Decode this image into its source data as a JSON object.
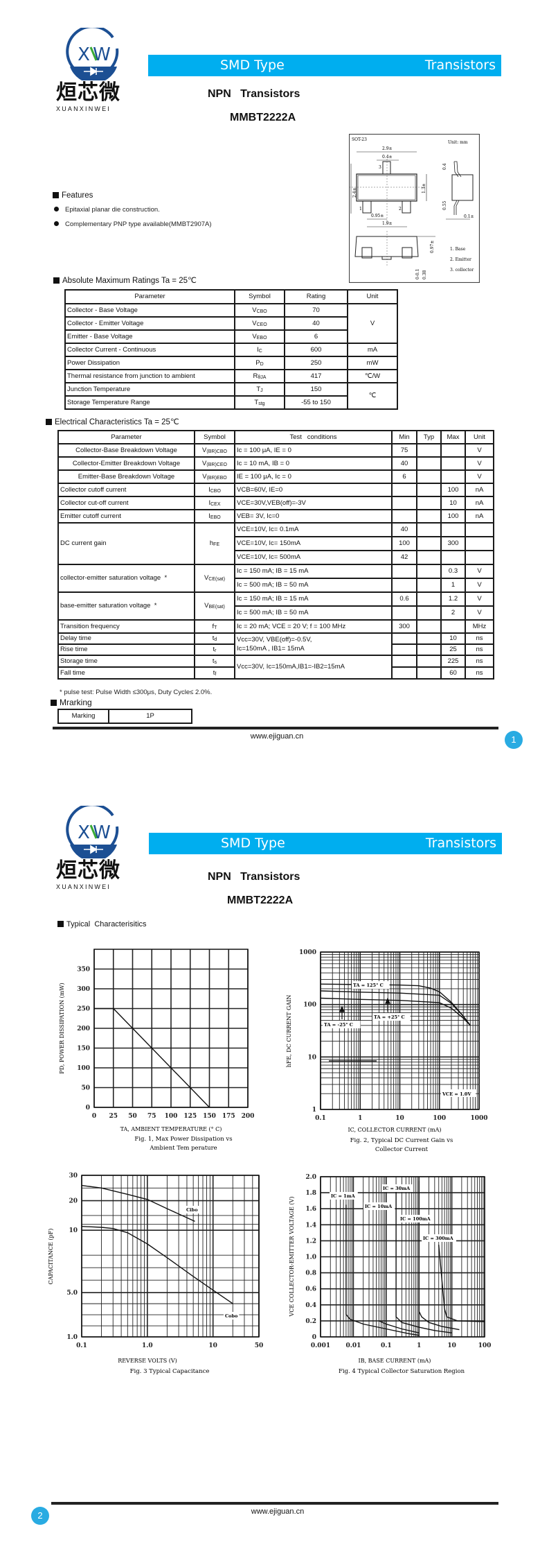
{
  "header": {
    "brand_cn": "烜芯微",
    "brand_en": "XUANXINWEI",
    "brand_mark": "XW",
    "bar_left": "SMD Type",
    "bar_right": "Transistors",
    "title_line1": "NPN   Transistors",
    "title_line2": "MMBT2222A",
    "brand_color": "#00aeef",
    "logo_color": "#1c4f93"
  },
  "package": {
    "name": "SOT-23",
    "unit": "Unit: mm",
    "dims": [
      "2.9±",
      "0.4±",
      "2.4±",
      "1.3±",
      "0.95±",
      "1.9±",
      "0.4",
      "0.55",
      "0.1±",
      "0.97±",
      "0-0.1",
      "0.38"
    ],
    "pin_numbers": [
      "1",
      "2",
      "3"
    ],
    "pins": [
      "1. Base",
      "2. Emitter",
      "3. collector"
    ]
  },
  "features": {
    "heading": "Features",
    "items": [
      "Epitaxial planar die construction.",
      "Complementary PNP type available(MMBT2907A)"
    ]
  },
  "abs_max": {
    "heading": "Absolute Maximum Ratings Ta = 25℃",
    "columns": [
      "Parameter",
      "Symbol",
      "Rating",
      "Unit"
    ],
    "rows": [
      {
        "param": "Collector - Base Voltage",
        "sym": "V",
        "sub": "CBO",
        "rating": "70",
        "unit": "V"
      },
      {
        "param": "Collector - Emitter Voltage",
        "sym": "V",
        "sub": "CEO",
        "rating": "40"
      },
      {
        "param": "Emitter - Base Voltage",
        "sym": "V",
        "sub": "EBO",
        "rating": "6"
      },
      {
        "param": "Collector Current  - Continuous",
        "sym": "I",
        "sub": "C",
        "rating": "600",
        "unit": "mA"
      },
      {
        "param": "Power Dissipation",
        "sym": "P",
        "sub": "D",
        "rating": "250",
        "unit": "mW"
      },
      {
        "param": "Thermal resistance from junction to ambient",
        "sym": "R",
        "sub": "θJA",
        "rating": "417",
        "unit": "℃/W"
      },
      {
        "param": "Junction Temperature",
        "sym": "T",
        "sub": "J",
        "rating": "150",
        "unit": "℃"
      },
      {
        "param": "Storage Temperature Range",
        "sym": "T",
        "sub": "stg",
        "rating": "-55 to 150"
      }
    ]
  },
  "elec": {
    "heading": "Electrical Characteristics Ta = 25℃",
    "columns": [
      "Parameter",
      "Symbol",
      "Test   conditions",
      "Min",
      "Typ",
      "Max",
      "Unit"
    ],
    "rows": [
      {
        "param": "Collector-Base Breakdown Voltage",
        "sym": "V",
        "sub": "(BR)CBO",
        "cond": "Ic = 100 μA, IE = 0",
        "min": "75",
        "unit": "V"
      },
      {
        "param": "Collector-Emitter Breakdown Voltage",
        "sym": "V",
        "sub": "(BR)CEO",
        "cond": "Ic = 10 mA, IB = 0",
        "min": "40",
        "unit": "V"
      },
      {
        "param": "Emitter-Base Breakdown Voltage",
        "sym": "V",
        "sub": "(BR)EBO",
        "cond": "IE = 100 μA, Ic = 0",
        "min": "6",
        "unit": "V"
      },
      {
        "param": "Collector cutoff current",
        "sym": "I",
        "sub": "CBO",
        "cond": "VCB=60V, IE=0",
        "max": "100",
        "unit": "nA"
      },
      {
        "param": "Collector cut-off current",
        "sym": "I",
        "sub": "CEX",
        "cond": "VCE=30V,VEB(off)=-3V",
        "max": "10",
        "unit": "nA"
      },
      {
        "param": "Emitter cutoff current",
        "sym": "I",
        "sub": "EBO",
        "cond": "VEB= 3V, Ic=0",
        "max": "100",
        "unit": "nA"
      },
      {
        "param": "DC current gain",
        "sym": "h",
        "sub": "FE",
        "sub_rows": [
          {
            "cond": "VCE=10V, Ic= 0.1mA",
            "min": "40"
          },
          {
            "cond": "VCE=10V, Ic= 150mA",
            "min": "100",
            "max": "300"
          },
          {
            "cond": "VCE=10V, Ic= 500mA",
            "min": "42"
          }
        ]
      },
      {
        "param": "collector-emitter saturation voltage  *",
        "sym": "V",
        "sub": "CE(sat)",
        "sub_rows": [
          {
            "cond": "Ic = 150 mA; IB = 15 mA",
            "max": "0.3",
            "unit": "V"
          },
          {
            "cond": "Ic = 500 mA; IB = 50 mA",
            "max": "1",
            "unit": "V"
          }
        ]
      },
      {
        "param": "base-emitter saturation voltage  *",
        "sym": "V",
        "sub": "BE(sat)",
        "sub_rows": [
          {
            "cond": "Ic = 150 mA; IB = 15 mA",
            "min": "0.6",
            "max": "1.2",
            "unit": "V"
          },
          {
            "cond": "Ic = 500 mA; IB = 50 mA",
            "max": "2",
            "unit": "V"
          }
        ]
      },
      {
        "param": "Transition frequency",
        "sym": "f",
        "sub": "T",
        "cond": "Ic = 20 mA; VCE = 20 V; f = 100 MHz",
        "min": "300",
        "unit": "MHz"
      },
      {
        "param": "Delay time",
        "sym": "t",
        "sub": "d",
        "cond_line1": "Vcc=30V, VBE(off)=-0.5V,",
        "cond_line2": "Ic=150mA , IB1= 15mA",
        "max": "10",
        "unit": "ns"
      },
      {
        "param": "Rise time",
        "sym": "t",
        "sub": "r",
        "max": "25",
        "unit": "ns"
      },
      {
        "param": "Storage time",
        "sym": "t",
        "sub": "s",
        "cond": "Vcc=30V, Ic=150mA,IB1=-IB2=15mA",
        "max": "225",
        "unit": "ns"
      },
      {
        "param": "Fall time",
        "sym": "t",
        "sub": "f",
        "max": "60",
        "unit": "ns"
      }
    ],
    "note": "* pulse test: Pulse Width ≤300μs, Duty Cycle≤ 2.0%."
  },
  "marking": {
    "heading": "Mrarking",
    "label": "Marking",
    "value": "1P"
  },
  "footer": {
    "url": "www.ejiguan.cn",
    "page1": "1",
    "page2": "2"
  },
  "typical": {
    "heading": "Typical  Characterisitics"
  },
  "chart_data": [
    {
      "type": "line",
      "xlabel": "TA, AMBIENT TEMPERATURE (° C)",
      "ylabel": "PD, POWER DISSIPATION (mW)",
      "caption": [
        "Fig. 1, Max Power Dissipation vs",
        "Ambient Tem perature"
      ],
      "x_scale": "linear",
      "y_scale": "linear",
      "xlim": [
        0,
        200
      ],
      "ylim": [
        0,
        400
      ],
      "xticks": [
        0,
        25,
        50,
        75,
        100,
        125,
        150,
        175,
        200
      ],
      "xtick_labels": [
        "0",
        "25",
        "50",
        "75",
        "100",
        "125",
        "150",
        "175",
        "200"
      ],
      "yticks": [
        0,
        50,
        100,
        150,
        200,
        250,
        300,
        350
      ],
      "ytick_labels": [
        "0",
        "50",
        "100",
        "150",
        "200",
        "250",
        "300",
        "350"
      ],
      "grid": true,
      "series": [
        {
          "points": [
            [
              0,
              250
            ],
            [
              25,
              250
            ],
            [
              150,
              0
            ]
          ]
        }
      ]
    },
    {
      "type": "line",
      "xlabel": "IC, COLLECTOR CURRENT (mA)",
      "ylabel": "hFE, DC CURRENT GAIN",
      "caption": [
        "Fig. 2, Typical DC Current Gain vs",
        "Collector Current"
      ],
      "x_scale": "log",
      "y_scale": "log",
      "xlim": [
        0.1,
        1000
      ],
      "ylim": [
        1,
        1000
      ],
      "xticks": [
        0.1,
        1,
        10,
        100,
        1000
      ],
      "xtick_labels": [
        "0.1",
        "1",
        "10",
        "100",
        "1000"
      ],
      "yticks": [
        1,
        10,
        100,
        1000
      ],
      "ytick_labels": [
        "1",
        "10",
        "100",
        "1000"
      ],
      "grid": true,
      "series": [
        {
          "name": "TA = 125° C",
          "points": [
            [
              0.1,
              245
            ],
            [
              1,
              240
            ],
            [
              10,
              235
            ],
            [
              30,
              228
            ],
            [
              60,
              205
            ],
            [
              100,
              175
            ],
            [
              200,
              110
            ],
            [
              400,
              60
            ],
            [
              600,
              40
            ]
          ]
        },
        {
          "name": "TA = +25° C",
          "points": [
            [
              0.1,
              182
            ],
            [
              1,
              172
            ],
            [
              10,
              165
            ],
            [
              50,
              155
            ],
            [
              100,
              150
            ],
            [
              200,
              105
            ],
            [
              400,
              60
            ],
            [
              600,
              40
            ]
          ]
        },
        {
          "name": "TA = -25° C",
          "points": [
            [
              0.1,
              132
            ],
            [
              1,
              125
            ],
            [
              10,
              120
            ],
            [
              50,
              112
            ],
            [
              100,
              108
            ],
            [
              200,
              85
            ],
            [
              400,
              55
            ],
            [
              600,
              40
            ]
          ]
        }
      ],
      "annotations": [
        "VCE = 1.0V"
      ]
    },
    {
      "type": "line",
      "xlabel": "REVERSE VOLTS (V)",
      "ylabel": "CAPACITANCE (pF)",
      "caption": [
        "Fig. 3 Typical Capacitance"
      ],
      "x_scale": "log",
      "y_scale": "nonuniform",
      "xlim": [
        0.1,
        50
      ],
      "ylim": [
        1,
        30
      ],
      "xticks": [
        0.1,
        1,
        10,
        50
      ],
      "xtick_labels": [
        "0.1",
        "1.0",
        "10",
        "50"
      ],
      "yticks": [
        1,
        5,
        10,
        20,
        30
      ],
      "ytick_labels": [
        "1.0",
        "5.0",
        "10",
        "20",
        "30"
      ],
      "grid": true,
      "series": [
        {
          "name": "Cibo",
          "points": [
            [
              0.1,
              26
            ],
            [
              0.2,
              25
            ],
            [
              0.5,
              22.5
            ],
            [
              1,
              20.5
            ],
            [
              2,
              17.3
            ],
            [
              5.3,
              13
            ]
          ]
        },
        {
          "name": "Cobo",
          "points": [
            [
              0.1,
              11.3
            ],
            [
              0.2,
              11
            ],
            [
              0.3,
              10.6
            ],
            [
              0.5,
              9.8
            ],
            [
              1,
              8.9
            ],
            [
              2,
              7.8
            ],
            [
              5,
              6.3
            ],
            [
              10,
              5.2
            ],
            [
              20,
              4.0
            ]
          ]
        }
      ]
    },
    {
      "type": "line",
      "xlabel": "IB, BASE CURRENT (mA)",
      "ylabel": "VCE COLLECTOR-EMITTER VOLTAGE (V)",
      "caption": [
        "Fig. 4 Typical Collector Saturation Region"
      ],
      "x_scale": "log",
      "y_scale": "linear",
      "xlim": [
        0.001,
        100
      ],
      "ylim": [
        0,
        2.0
      ],
      "xticks": [
        0.001,
        0.01,
        0.1,
        1,
        10,
        100
      ],
      "xtick_labels": [
        "0.001",
        "0.01",
        "0.1",
        "1",
        "10",
        "100"
      ],
      "yticks": [
        0,
        0.2,
        0.4,
        0.6,
        0.8,
        1.0,
        1.2,
        1.4,
        1.6,
        1.8,
        2.0
      ],
      "ytick_labels": [
        "0",
        "0.2",
        "0.4",
        "0.6",
        "0.8",
        "1.0",
        "1.2",
        "1.4",
        "1.6",
        "1.8",
        "2.0"
      ],
      "grid": true,
      "series": [
        {
          "name": "IC = 1mA",
          "points": [
            [
              0.006,
              1.65
            ],
            [
              0.006,
              0.28
            ],
            [
              0.008,
              0.22
            ],
            [
              0.02,
              0.16
            ],
            [
              0.1,
              0.1
            ],
            [
              0.5,
              0.04
            ],
            [
              1,
              0.02
            ]
          ]
        },
        {
          "name": "IC = 10mA",
          "points": [
            [
              0.06,
              0.2
            ],
            [
              0.1,
              0.16
            ],
            [
              0.3,
              0.1
            ],
            [
              1,
              0.05
            ]
          ]
        },
        {
          "name": "IC = 30mA",
          "points": [
            [
              0.2,
              1.82
            ],
            [
              0.2,
              0.25
            ],
            [
              0.3,
              0.18
            ],
            [
              1,
              0.12
            ],
            [
              3,
              0.08
            ],
            [
              10,
              0.05
            ]
          ]
        },
        {
          "name": "IC = 100mA",
          "points": [
            [
              1,
              1.95
            ],
            [
              1,
              0.32
            ],
            [
              1.2,
              0.25
            ],
            [
              2,
              0.18
            ],
            [
              5,
              0.13
            ],
            [
              17,
              0.09
            ]
          ]
        },
        {
          "name": "IC = 300mA",
          "points": [
            [
              4,
              1.15
            ],
            [
              6,
              0.35
            ],
            [
              7,
              0.25
            ],
            [
              15,
              0.2
            ],
            [
              100,
              0.19
            ]
          ]
        }
      ]
    }
  ]
}
